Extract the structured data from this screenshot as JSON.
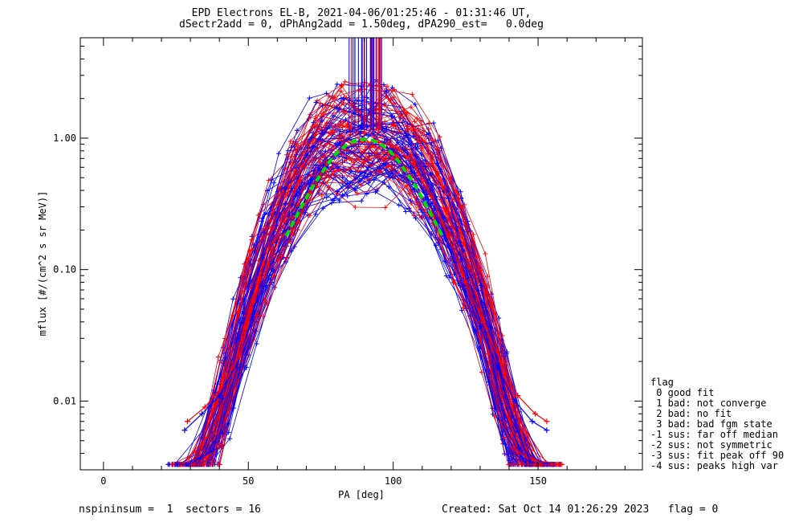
{
  "header": {
    "title_line1": "EPD Electrons EL-B, 2021-04-06/01:25:46 - 01:31:46 UT,",
    "title_line2": "dSectr2add = 0, dPhAng2add = 1.50deg, dPA290_est=   0.0deg"
  },
  "footer": {
    "left": "nspininsum =  1  sectors = 16",
    "right": "Created: Sat Oct 14 01:26:29 2023   flag = 0"
  },
  "legend": {
    "title": "flag",
    "items": [
      " 0 good fit",
      " 1 bad: not converge",
      " 2 bad: no fit",
      " 3 bad: bad fgm state",
      "-1 sus: far off median",
      "-2 sus: not symmetric",
      "-3 sus: fit peak off 90",
      "-4 sus: peaks high var"
    ]
  },
  "colors": {
    "series_a": "#0000ff",
    "series_b": "#ff0000",
    "fit": "#00dd00",
    "axes": "#000000"
  },
  "chart_data": {
    "type": "line",
    "xlabel": "PA [deg]",
    "ylabel": "mflux [#/(cm^2 s sr MeV)]",
    "xlim": [
      -8,
      186
    ],
    "ylim": [
      0.003,
      5.8
    ],
    "yscale": "log",
    "xticks": [
      0,
      50,
      100,
      150
    ],
    "xtick_labels": [
      "0",
      "50",
      "100",
      "150"
    ],
    "yticks": [
      0.01,
      0.1,
      1.0
    ],
    "ytick_labels": [
      "0.01",
      "0.10",
      "1.00"
    ],
    "grid": false,
    "series": [
      {
        "color": "blue",
        "x": [
          28,
          34,
          40,
          46,
          52,
          58,
          64,
          70,
          76,
          82,
          88,
          94,
          100,
          106,
          112,
          118,
          124,
          130,
          136,
          142,
          148,
          153
        ],
        "y": [
          0.006,
          0.008,
          0.011,
          0.019,
          0.04,
          0.08,
          0.17,
          0.35,
          0.62,
          0.82,
          0.9,
          0.9,
          0.82,
          0.6,
          0.34,
          0.17,
          0.075,
          0.037,
          0.018,
          0.01,
          0.007,
          0.006
        ]
      },
      {
        "color": "red",
        "x": [
          29,
          35,
          41,
          47,
          53,
          59,
          65,
          71,
          77,
          83,
          89,
          95,
          101,
          107,
          113,
          119,
          125,
          131,
          137,
          143,
          149,
          153
        ],
        "y": [
          0.007,
          0.009,
          0.013,
          0.022,
          0.045,
          0.09,
          0.19,
          0.38,
          0.65,
          0.85,
          0.93,
          0.93,
          0.85,
          0.63,
          0.36,
          0.18,
          0.08,
          0.04,
          0.02,
          0.011,
          0.008,
          0.007
        ]
      }
    ],
    "fit": {
      "color": "green",
      "style": "dashed",
      "x": [
        63,
        66,
        69,
        72,
        75,
        78,
        81,
        84,
        87,
        90,
        93,
        96,
        99,
        102,
        105,
        108,
        111,
        114,
        117
      ],
      "y": [
        0.18,
        0.24,
        0.32,
        0.42,
        0.53,
        0.66,
        0.79,
        0.89,
        0.96,
        0.98,
        0.96,
        0.89,
        0.79,
        0.66,
        0.53,
        0.42,
        0.32,
        0.24,
        0.18
      ]
    }
  }
}
